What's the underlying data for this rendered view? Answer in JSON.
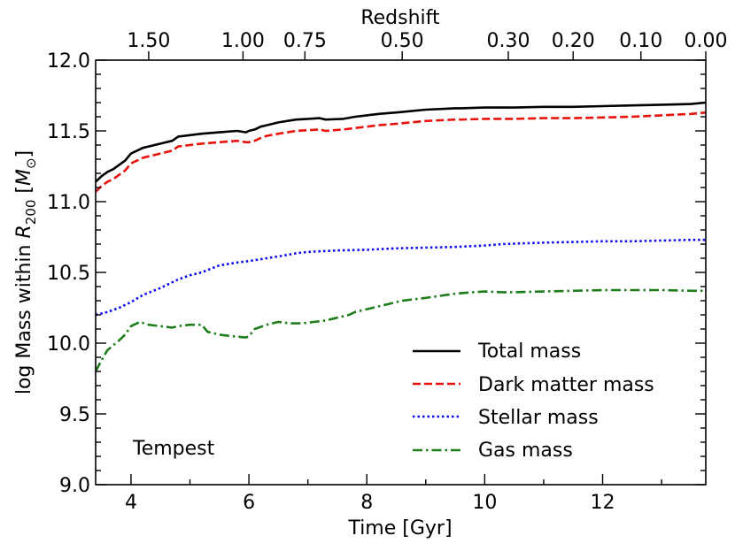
{
  "chart_data": {
    "type": "line",
    "annotation": "Tempest",
    "xlabel": "Time [Gyr]",
    "ylabel_prefix": "log Mass within ",
    "ylabel_r": "R",
    "ylabel_sub": "200",
    "ylabel_unit_open": " [",
    "ylabel_unit_m": "M",
    "ylabel_unit_sun": "⊙",
    "ylabel_unit_close": "]",
    "top_xlabel": "Redshift",
    "xlim": [
      3.4,
      13.75
    ],
    "ylim": [
      9.0,
      12.0
    ],
    "x_ticks": [
      {
        "value": 4,
        "label": "4"
      },
      {
        "value": 6,
        "label": "6"
      },
      {
        "value": 8,
        "label": "8"
      },
      {
        "value": 10,
        "label": "10"
      },
      {
        "value": 12,
        "label": "12"
      }
    ],
    "y_ticks": [
      {
        "value": 9.0,
        "label": "9.0"
      },
      {
        "value": 9.5,
        "label": "9.5"
      },
      {
        "value": 10.0,
        "label": "10.0"
      },
      {
        "value": 10.5,
        "label": "10.5"
      },
      {
        "value": 11.0,
        "label": "11.0"
      },
      {
        "value": 11.5,
        "label": "11.5"
      },
      {
        "value": 12.0,
        "label": "12.0"
      }
    ],
    "top_ticks": [
      {
        "time": 4.3,
        "label": "1.50"
      },
      {
        "time": 5.9,
        "label": "1.00"
      },
      {
        "time": 6.95,
        "label": "0.75"
      },
      {
        "time": 8.6,
        "label": "0.50"
      },
      {
        "time": 10.4,
        "label": "0.30"
      },
      {
        "time": 11.5,
        "label": "0.20"
      },
      {
        "time": 12.65,
        "label": "0.10"
      },
      {
        "time": 13.75,
        "label": "0.00"
      }
    ],
    "series": [
      {
        "name": "Total mass",
        "color": "#000000",
        "dash": "solid",
        "x": [
          3.4,
          3.5,
          3.6,
          3.7,
          3.8,
          3.9,
          4.0,
          4.1,
          4.2,
          4.3,
          4.5,
          4.7,
          4.8,
          5.0,
          5.2,
          5.5,
          5.8,
          5.95,
          6.0,
          6.1,
          6.2,
          6.3,
          6.5,
          6.8,
          7.0,
          7.2,
          7.3,
          7.6,
          7.8,
          8.0,
          8.2,
          8.5,
          9.0,
          9.5,
          9.6,
          10.0,
          10.5,
          11.0,
          11.5,
          12.0,
          12.5,
          13.0,
          13.5,
          13.75
        ],
        "y": [
          11.14,
          11.18,
          11.21,
          11.23,
          11.26,
          11.29,
          11.34,
          11.36,
          11.38,
          11.39,
          11.41,
          11.43,
          11.46,
          11.47,
          11.48,
          11.49,
          11.5,
          11.49,
          11.5,
          11.51,
          11.53,
          11.54,
          11.56,
          11.58,
          11.585,
          11.59,
          11.58,
          11.585,
          11.6,
          11.61,
          11.62,
          11.63,
          11.65,
          11.66,
          11.66,
          11.665,
          11.665,
          11.67,
          11.67,
          11.675,
          11.68,
          11.685,
          11.69,
          11.7
        ]
      },
      {
        "name": "Dark matter mass",
        "color": "#e8120c",
        "dash": "dashed",
        "x": [
          3.4,
          3.5,
          3.6,
          3.7,
          3.8,
          3.9,
          4.0,
          4.1,
          4.2,
          4.3,
          4.5,
          4.7,
          4.8,
          5.0,
          5.2,
          5.5,
          5.8,
          5.95,
          6.0,
          6.1,
          6.2,
          6.3,
          6.5,
          6.8,
          7.0,
          7.2,
          7.3,
          7.6,
          7.8,
          8.0,
          8.2,
          8.5,
          9.0,
          9.5,
          9.6,
          10.0,
          10.5,
          11.0,
          11.5,
          12.0,
          12.5,
          13.0,
          13.5,
          13.75
        ],
        "y": [
          11.07,
          11.11,
          11.14,
          11.16,
          11.19,
          11.22,
          11.27,
          11.29,
          11.31,
          11.32,
          11.34,
          11.36,
          11.39,
          11.4,
          11.41,
          11.42,
          11.43,
          11.42,
          11.42,
          11.43,
          11.45,
          11.465,
          11.48,
          11.5,
          11.505,
          11.51,
          11.5,
          11.51,
          11.52,
          11.53,
          11.54,
          11.55,
          11.57,
          11.58,
          11.58,
          11.585,
          11.585,
          11.59,
          11.59,
          11.595,
          11.6,
          11.61,
          11.62,
          11.63
        ]
      },
      {
        "name": "Stellar mass",
        "color": "#0a0af2",
        "dash": "dotted",
        "x": [
          3.4,
          3.6,
          3.8,
          4.0,
          4.2,
          4.5,
          4.8,
          5.0,
          5.2,
          5.5,
          5.8,
          6.0,
          6.3,
          6.6,
          6.8,
          7.0,
          7.5,
          8.0,
          8.5,
          9.0,
          9.5,
          10.0,
          10.3,
          10.6,
          11.0,
          11.5,
          12.0,
          12.5,
          13.0,
          13.5,
          13.75
        ],
        "y": [
          10.2,
          10.22,
          10.25,
          10.29,
          10.34,
          10.39,
          10.45,
          10.48,
          10.5,
          10.55,
          10.57,
          10.58,
          10.6,
          10.62,
          10.635,
          10.645,
          10.655,
          10.66,
          10.67,
          10.675,
          10.68,
          10.69,
          10.7,
          10.705,
          10.71,
          10.715,
          10.72,
          10.72,
          10.725,
          10.73,
          10.73
        ]
      },
      {
        "name": "Gas mass",
        "color": "#1e7d1a",
        "dash": "dashdot",
        "x": [
          3.4,
          3.5,
          3.6,
          3.8,
          3.9,
          4.0,
          4.1,
          4.15,
          4.3,
          4.5,
          4.7,
          4.8,
          5.0,
          5.2,
          5.3,
          5.5,
          5.7,
          5.95,
          6.0,
          6.1,
          6.3,
          6.5,
          6.7,
          6.9,
          7.1,
          7.3,
          7.5,
          7.7,
          7.8,
          8.0,
          8.3,
          8.6,
          9.0,
          9.5,
          9.8,
          10.0,
          10.3,
          10.5,
          11.0,
          11.5,
          12.0,
          12.5,
          13.0,
          13.5,
          13.75
        ],
        "y": [
          9.8,
          9.88,
          9.95,
          10.02,
          10.06,
          10.12,
          10.14,
          10.15,
          10.13,
          10.12,
          10.11,
          10.12,
          10.13,
          10.13,
          10.08,
          10.06,
          10.05,
          10.04,
          10.05,
          10.1,
          10.13,
          10.15,
          10.14,
          10.14,
          10.15,
          10.16,
          10.18,
          10.2,
          10.22,
          10.24,
          10.27,
          10.3,
          10.32,
          10.35,
          10.36,
          10.365,
          10.36,
          10.36,
          10.365,
          10.37,
          10.375,
          10.375,
          10.375,
          10.37,
          10.37
        ]
      }
    ]
  }
}
